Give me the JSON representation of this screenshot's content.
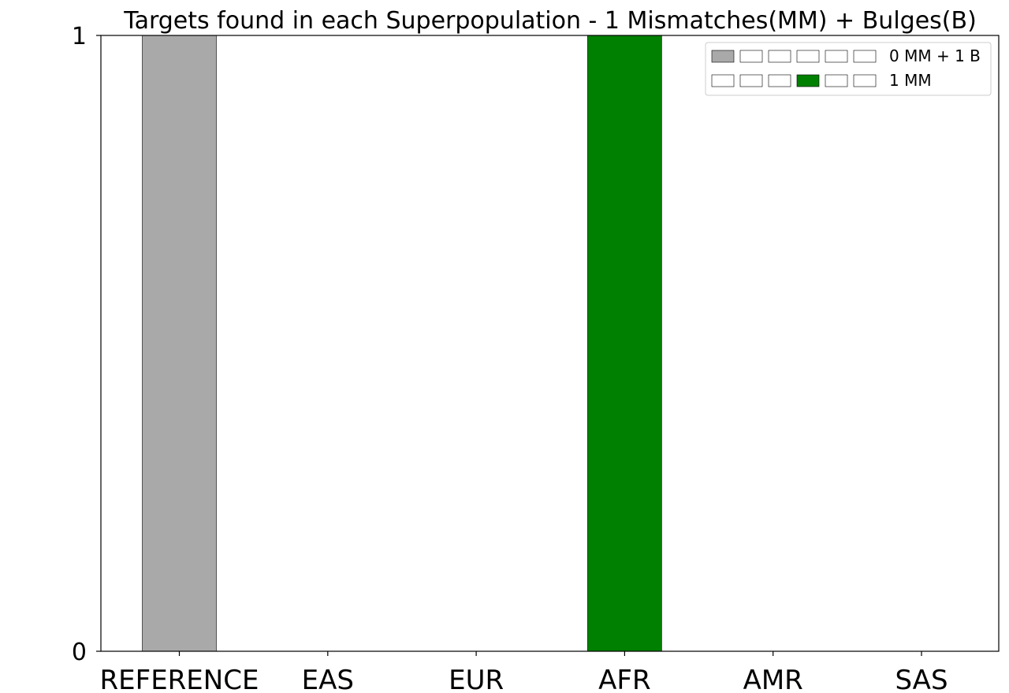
{
  "chart_data": {
    "type": "bar",
    "title": "Targets found in each Superpopulation - 1 Mismatches(MM) + Bulges(B)",
    "xlabel": "",
    "ylabel": "",
    "categories": [
      "REFERENCE",
      "EAS",
      "EUR",
      "AFR",
      "AMR",
      "SAS"
    ],
    "series": [
      {
        "name": "0 MM + 1 B",
        "values": [
          1,
          0,
          0,
          0,
          0,
          0
        ],
        "color": "#a9a9a9"
      },
      {
        "name": "1 MM",
        "values": [
          0,
          0,
          0,
          1,
          0,
          0
        ],
        "color": "#008000"
      }
    ],
    "ylim": [
      0,
      1
    ],
    "yticks": [
      "0",
      "1"
    ],
    "grid": false,
    "legend_position": "top-right",
    "colors": {
      "reference": "#a9a9a9",
      "superpopulation": "#008000",
      "empty": "#ffffff",
      "edge": "#000000"
    }
  }
}
